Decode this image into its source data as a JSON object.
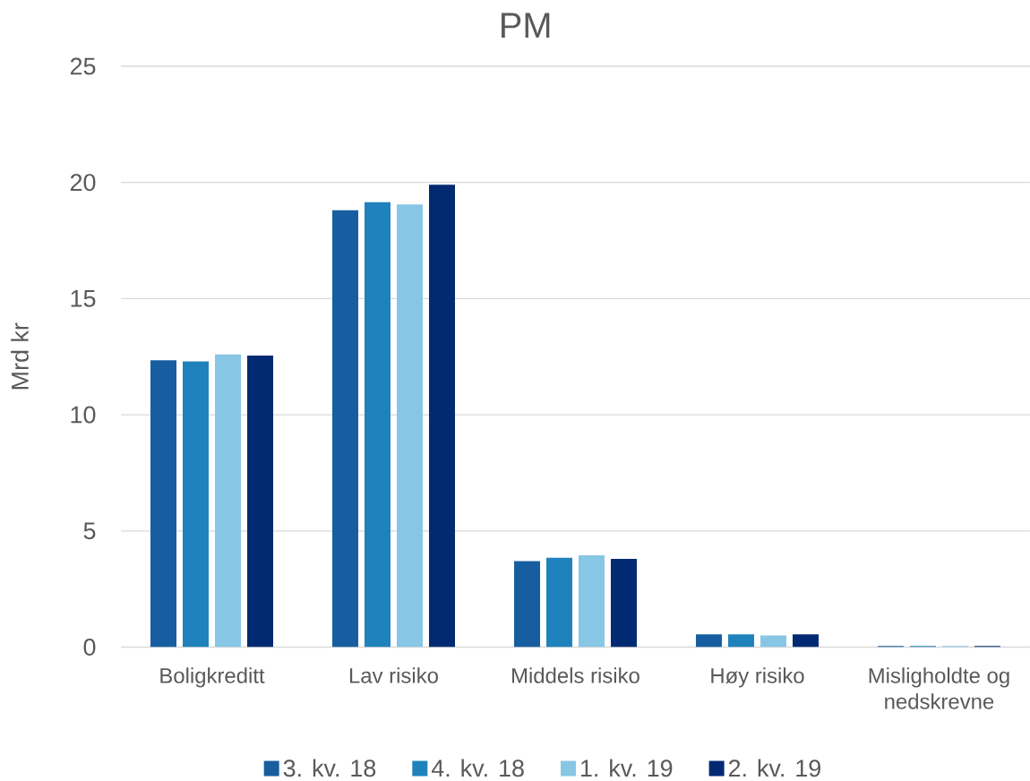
{
  "chart_data": {
    "type": "bar",
    "title": "PM",
    "ylabel": "Mrd kr",
    "categories": [
      "Boligkreditt",
      "Lav risiko",
      "Middels risiko",
      "Høy risiko",
      "Misligholdte og nedskrevne"
    ],
    "series": [
      {
        "name": "3. kv. 18",
        "color": "#175EA0",
        "values": [
          12.35,
          18.8,
          3.7,
          0.55,
          0.05
        ]
      },
      {
        "name": "4. kv. 18",
        "color": "#1F82BD",
        "values": [
          12.3,
          19.15,
          3.85,
          0.55,
          0.05
        ]
      },
      {
        "name": "1. kv. 19",
        "color": "#88C6E5",
        "values": [
          12.6,
          19.05,
          3.95,
          0.5,
          0.05
        ]
      },
      {
        "name": "2. kv. 19",
        "color": "#022A72",
        "values": [
          12.55,
          19.9,
          3.8,
          0.55,
          0.05
        ]
      }
    ],
    "ylim": [
      0,
      25
    ],
    "yticks": [
      0,
      5,
      10,
      15,
      20,
      25
    ],
    "grid": "y",
    "legend": "bottom"
  }
}
